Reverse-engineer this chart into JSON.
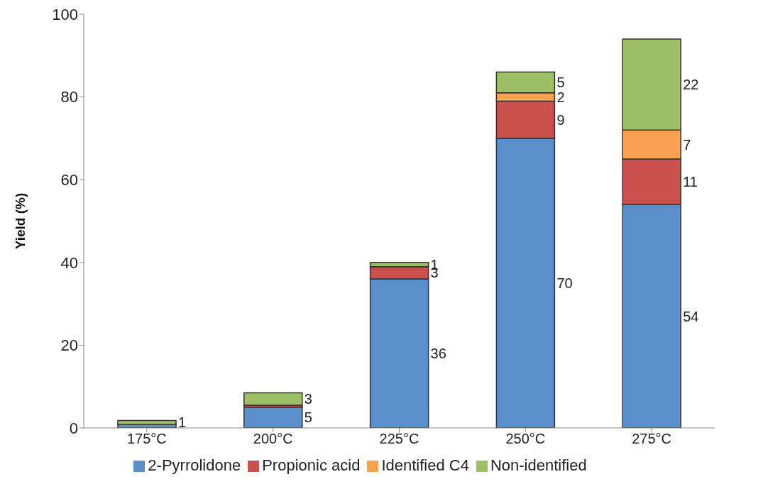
{
  "chart_data": {
    "type": "bar",
    "stacked": true,
    "ylabel": "Yield (%)",
    "categories": [
      "175°C",
      "200°C",
      "225°C",
      "250°C",
      "275°C"
    ],
    "ylim": [
      0,
      100
    ],
    "yticks": [
      0,
      20,
      40,
      60,
      80,
      100
    ],
    "grid": false,
    "legend": "bottom",
    "series": [
      {
        "name": "2-Pyrrolidone",
        "color": "#5b8fcb",
        "values": [
          0.8,
          5,
          36,
          70,
          54
        ],
        "value_labels": [
          null,
          "5",
          "36",
          "70",
          "54"
        ]
      },
      {
        "name": "Propionic acid",
        "color": "#c9504d",
        "values": [
          0,
          0.5,
          3,
          9,
          11
        ],
        "value_labels": [
          null,
          null,
          "3",
          "9",
          "11"
        ]
      },
      {
        "name": "Identified C4",
        "color": "#f8a252",
        "values": [
          0,
          0,
          0,
          2,
          7
        ],
        "value_labels": [
          null,
          null,
          null,
          "2",
          "7"
        ]
      },
      {
        "name": "Non-identified",
        "color": "#9dc067",
        "values": [
          1,
          3,
          1,
          5,
          22
        ],
        "value_labels": [
          "1",
          "3",
          "1",
          "5",
          "22"
        ]
      }
    ]
  }
}
